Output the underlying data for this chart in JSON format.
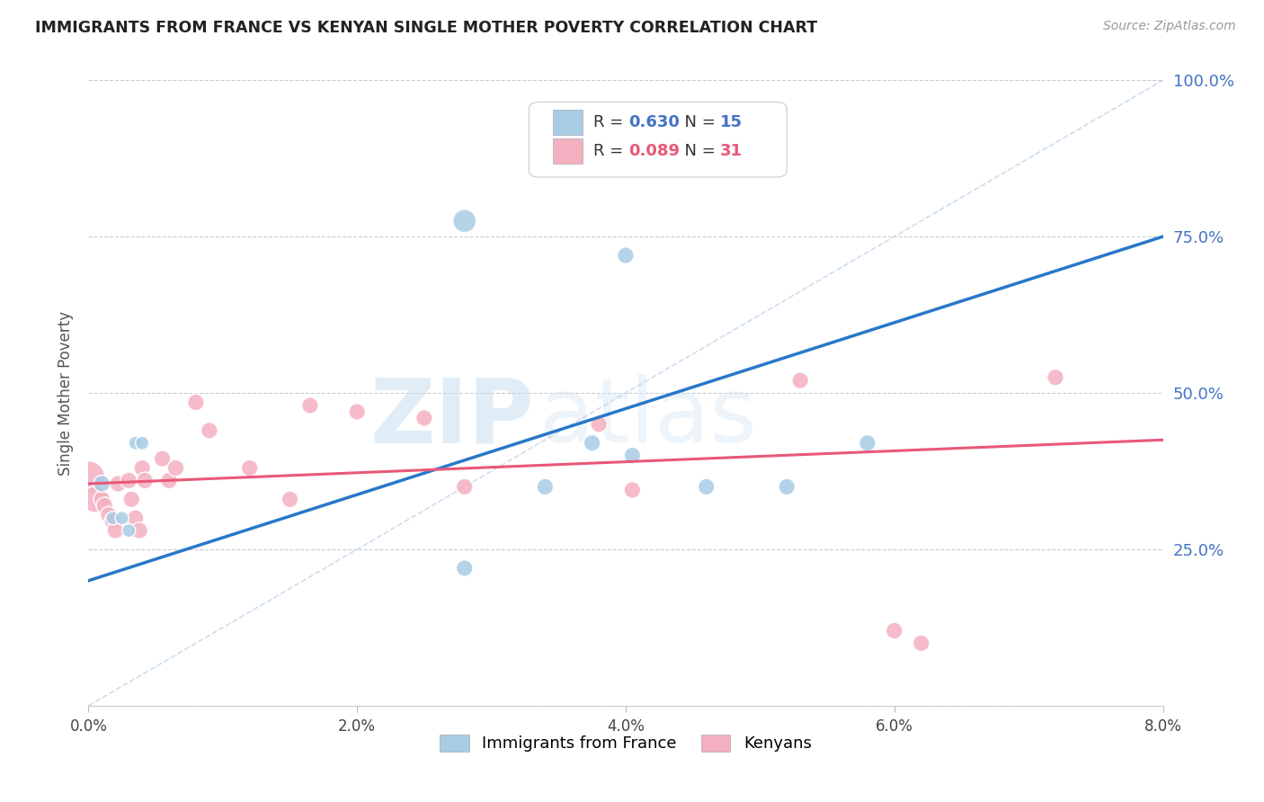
{
  "title": "IMMIGRANTS FROM FRANCE VS KENYAN SINGLE MOTHER POVERTY CORRELATION CHART",
  "source": "Source: ZipAtlas.com",
  "ylabel": "Single Mother Poverty",
  "legend_label1": "Immigrants from France",
  "legend_label2": "Kenyans",
  "r1": 0.63,
  "n1": 15,
  "r2": 0.089,
  "n2": 31,
  "watermark_zip": "ZIP",
  "watermark_atlas": "atlas",
  "blue_color": "#a8cce4",
  "pink_color": "#f4b0c0",
  "blue_line_color": "#2878c8",
  "pink_line_color": "#e85878",
  "diag_color": "#b8d0e8",
  "blue_scatter": [
    [
      0.001,
      0.355
    ],
    [
      0.0018,
      0.3
    ],
    [
      0.0025,
      0.3
    ],
    [
      0.003,
      0.28
    ],
    [
      0.0035,
      0.42
    ],
    [
      0.004,
      0.42
    ],
    [
      0.028,
      0.775
    ],
    [
      0.028,
      0.22
    ],
    [
      0.034,
      0.35
    ],
    [
      0.0375,
      0.42
    ],
    [
      0.04,
      0.72
    ],
    [
      0.0405,
      0.4
    ],
    [
      0.046,
      0.35
    ],
    [
      0.052,
      0.35
    ],
    [
      0.058,
      0.42
    ]
  ],
  "pink_scatter": [
    [
      0.0,
      0.365
    ],
    [
      0.0005,
      0.33
    ],
    [
      0.001,
      0.33
    ],
    [
      0.0012,
      0.32
    ],
    [
      0.0015,
      0.305
    ],
    [
      0.0018,
      0.295
    ],
    [
      0.002,
      0.28
    ],
    [
      0.0022,
      0.355
    ],
    [
      0.003,
      0.36
    ],
    [
      0.0032,
      0.33
    ],
    [
      0.0035,
      0.3
    ],
    [
      0.0038,
      0.28
    ],
    [
      0.004,
      0.38
    ],
    [
      0.0042,
      0.36
    ],
    [
      0.0055,
      0.395
    ],
    [
      0.006,
      0.36
    ],
    [
      0.0065,
      0.38
    ],
    [
      0.008,
      0.485
    ],
    [
      0.009,
      0.44
    ],
    [
      0.012,
      0.38
    ],
    [
      0.015,
      0.33
    ],
    [
      0.0165,
      0.48
    ],
    [
      0.02,
      0.47
    ],
    [
      0.025,
      0.46
    ],
    [
      0.028,
      0.35
    ],
    [
      0.038,
      0.45
    ],
    [
      0.0405,
      0.345
    ],
    [
      0.053,
      0.52
    ],
    [
      0.06,
      0.12
    ],
    [
      0.062,
      0.1
    ],
    [
      0.072,
      0.525
    ]
  ],
  "blue_scatter_sizes": [
    180,
    120,
    120,
    120,
    120,
    120,
    350,
    180,
    180,
    180,
    180,
    180,
    180,
    180,
    180
  ],
  "pink_scatter_sizes": [
    700,
    450,
    180,
    180,
    180,
    180,
    180,
    180,
    180,
    180,
    180,
    180,
    180,
    180,
    180,
    180,
    180,
    180,
    180,
    180,
    180,
    180,
    180,
    180,
    180,
    180,
    180,
    180,
    180,
    180,
    180
  ],
  "xlim": [
    0.0,
    0.08
  ],
  "ylim": [
    0.0,
    1.0
  ],
  "yticks": [
    0.0,
    0.25,
    0.5,
    0.75,
    1.0
  ],
  "ytick_right_labels": [
    "",
    "25.0%",
    "50.0%",
    "75.0%",
    "100.0%"
  ],
  "xticks": [
    0.0,
    0.02,
    0.04,
    0.06,
    0.08
  ],
  "xtick_labels": [
    "0.0%",
    "2.0%",
    "4.0%",
    "6.0%",
    "8.0%"
  ],
  "blue_trend": [
    0.0,
    0.08,
    0.2,
    0.75
  ],
  "pink_trend": [
    0.0,
    0.08,
    0.355,
    0.425
  ]
}
